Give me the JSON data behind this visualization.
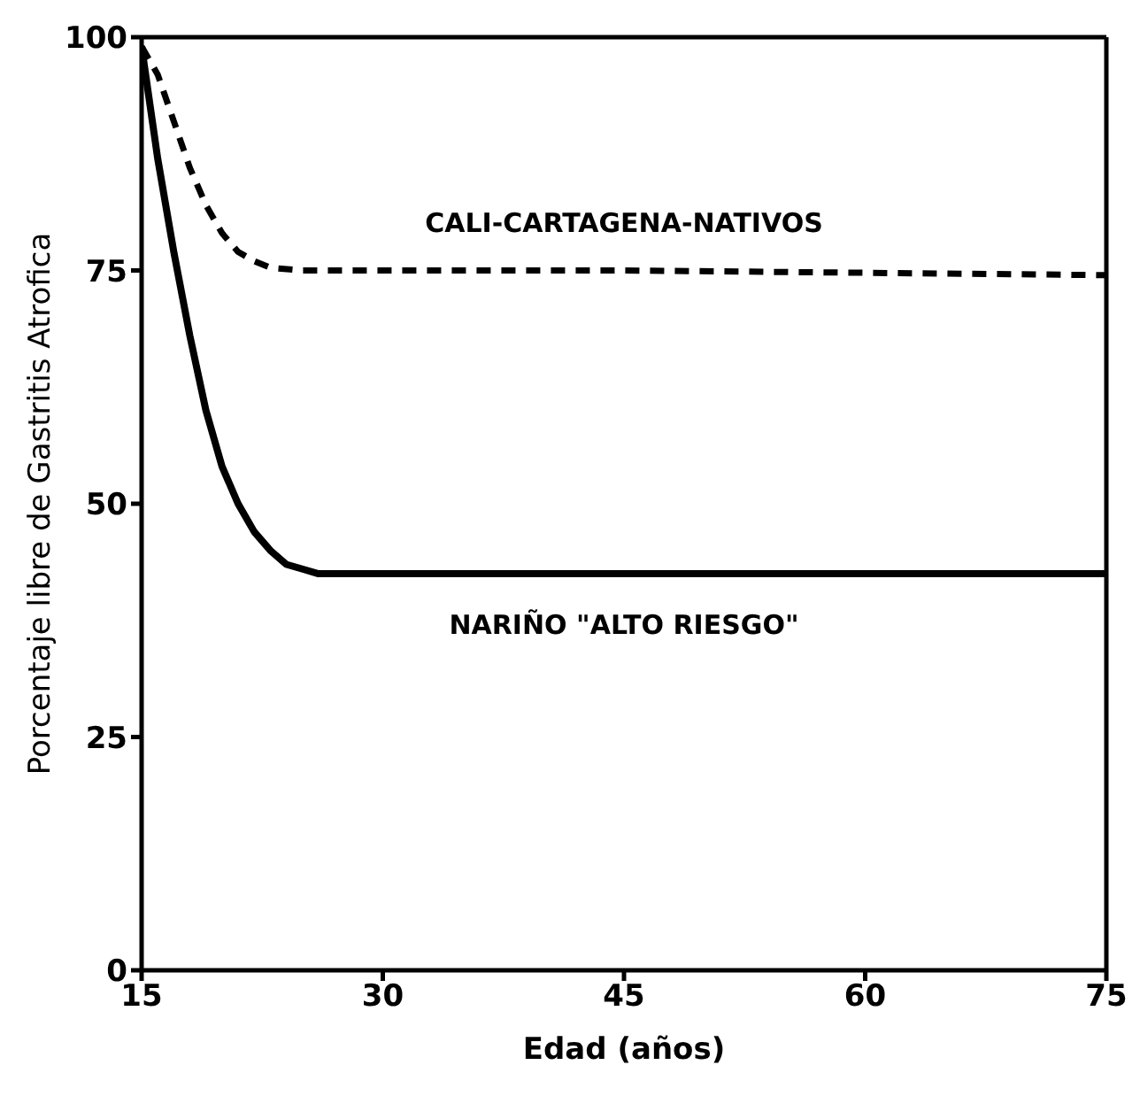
{
  "chart_data": {
    "type": "line",
    "xlabel": "Edad (años)",
    "ylabel": "Porcentaje libre de Gastritis Atrofica",
    "xlim": [
      15,
      75
    ],
    "ylim": [
      0,
      100
    ],
    "xticks": [
      15,
      30,
      45,
      60,
      75
    ],
    "yticks": [
      0,
      25,
      50,
      75,
      100
    ],
    "grid": false,
    "legend": false,
    "marker": "none",
    "series": [
      {
        "name": "CALI-CARTAGENA-NATIVOS",
        "color": "#000000",
        "line_style": "dashed",
        "x": [
          15,
          16,
          17,
          18,
          19,
          20,
          21,
          22,
          23,
          25,
          45,
          75
        ],
        "values": [
          99,
          96,
          91,
          86,
          82,
          79,
          77,
          76,
          75.3,
          75,
          75,
          74.5
        ]
      },
      {
        "name": "NARIÑO \"ALTO RIESGO\"",
        "color": "#000000",
        "line_style": "solid",
        "x": [
          15,
          16,
          17,
          18,
          19,
          20,
          21,
          22,
          23,
          24,
          25,
          26,
          45,
          75
        ],
        "values": [
          99,
          87,
          77,
          68,
          60,
          54,
          50,
          47,
          45,
          43.5,
          43,
          42.5,
          42.5,
          42.5
        ]
      }
    ]
  }
}
